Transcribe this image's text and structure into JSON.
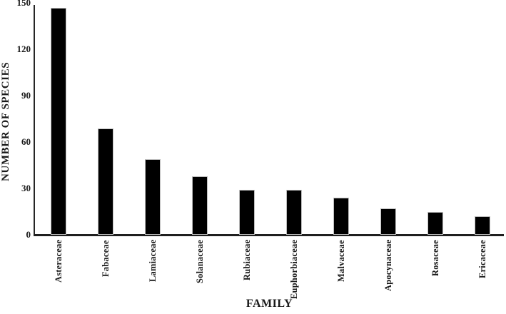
{
  "chart_data": {
    "type": "bar",
    "title": "",
    "xlabel": "FAMILY",
    "ylabel": "NUMBER OF SPECIES",
    "categories": [
      "Asteraceae",
      "Fabaceae",
      "Lamiaceae",
      "Solanaceae",
      "Rubiaceae",
      "Euphorbiaceae",
      "Malvaceae",
      "Apocynaceae",
      "Rosaceae",
      "Ericaceae"
    ],
    "values": [
      147,
      69,
      49,
      38,
      29,
      29,
      24,
      17,
      15,
      12
    ],
    "ylim": [
      0,
      150
    ],
    "yticks": [
      0,
      30,
      60,
      90,
      120,
      150
    ],
    "grid": false,
    "legend": "none",
    "colors": {
      "background": "#ffffff",
      "bar_fill": "#000000",
      "bar_border": "#bdbdbd",
      "axis": "#262626",
      "text": "#1a1a1a"
    }
  }
}
